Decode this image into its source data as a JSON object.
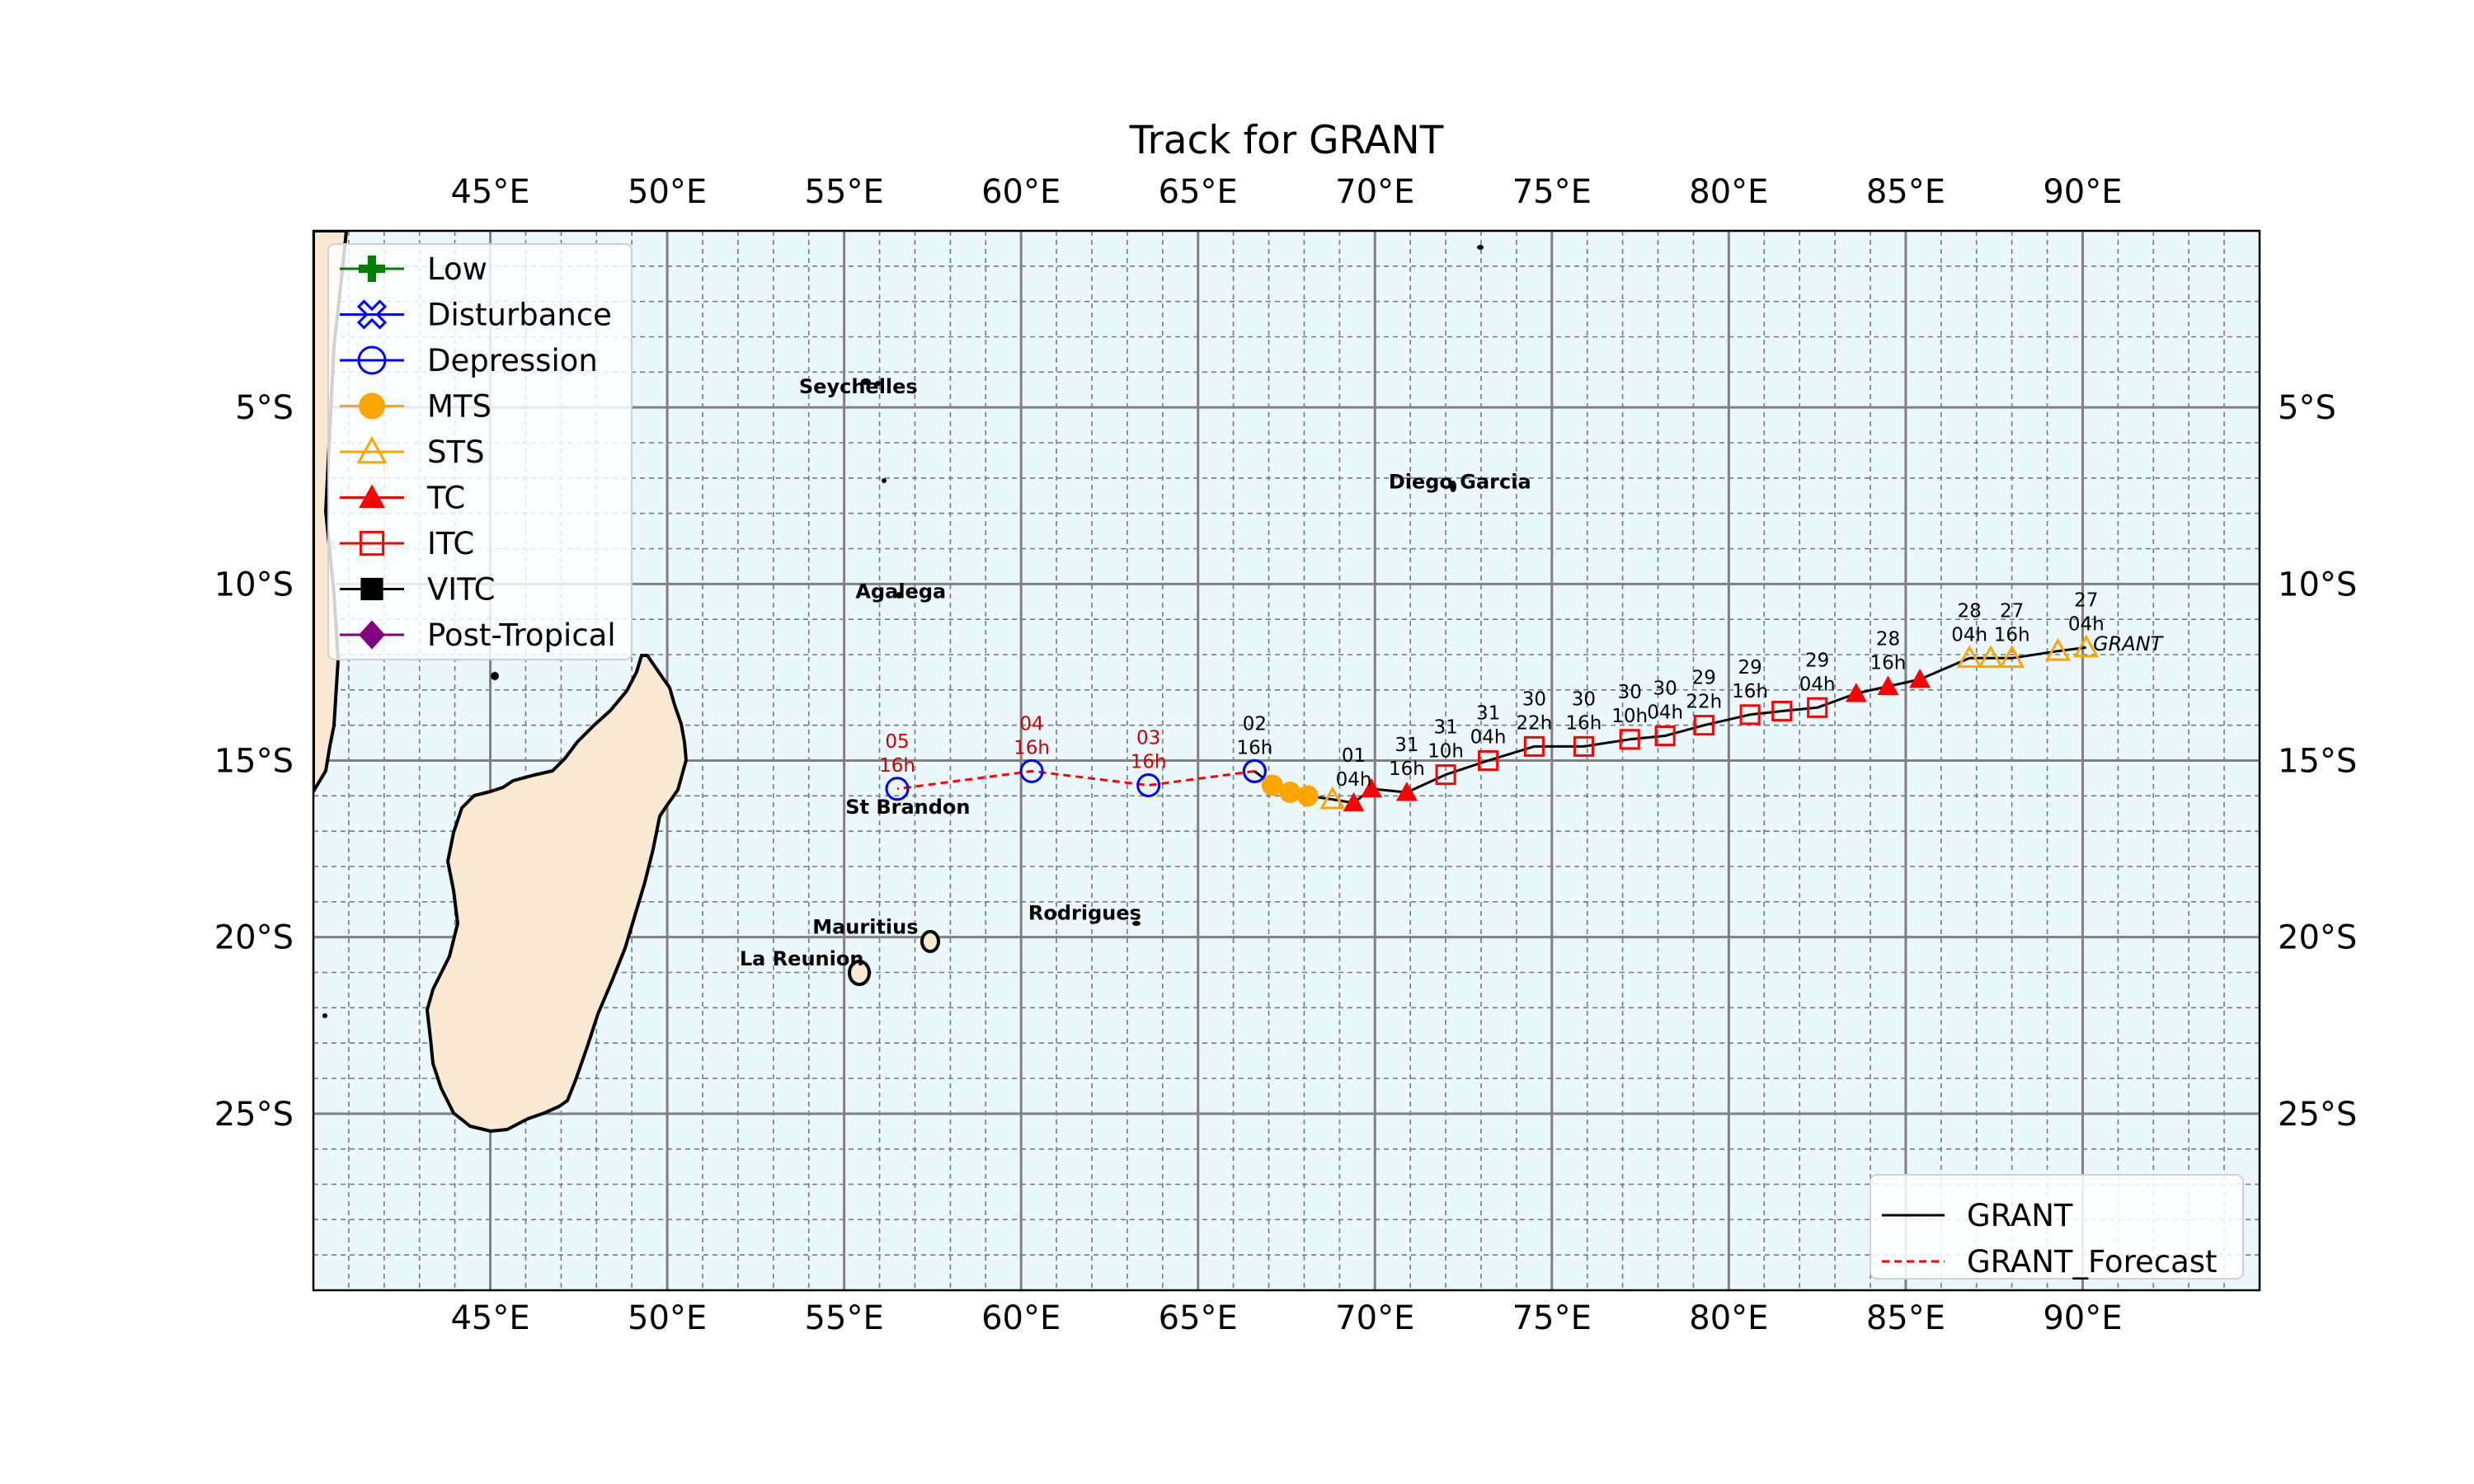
{
  "title": "Track for GRANT",
  "map": {
    "lon_range": [
      40,
      95
    ],
    "lat_range": [
      -30,
      0
    ],
    "major_lon_ticks": [
      45,
      50,
      55,
      60,
      65,
      70,
      75,
      80,
      85,
      90
    ],
    "major_lat_ticks": [
      -5,
      -10,
      -15,
      -20,
      -25
    ],
    "lon_tick_labels": [
      "45°E",
      "50°E",
      "55°E",
      "60°E",
      "65°E",
      "70°E",
      "75°E",
      "80°E",
      "85°E",
      "90°E"
    ],
    "lat_tick_labels": [
      "5°S",
      "10°S",
      "15°S",
      "20°S",
      "25°S"
    ],
    "ocean_color": "#eaf8fb",
    "land_color": "#f9e8d2",
    "grid_major_color": "#808080",
    "grid_minor_color": "#6a7d84"
  },
  "place_labels": [
    {
      "name": "Seychelles",
      "lon": 55.4,
      "lat": -4.6
    },
    {
      "name": "Diego Garcia",
      "lon": 72.4,
      "lat": -7.3
    },
    {
      "name": "Agalega",
      "lon": 56.6,
      "lat": -10.4
    },
    {
      "name": "St Brandon",
      "lon": 56.8,
      "lat": -16.5
    },
    {
      "name": "Mauritius",
      "lon": 55.6,
      "lat": -19.9
    },
    {
      "name": "Rodrigues",
      "lon": 61.8,
      "lat": -19.5
    },
    {
      "name": "La Reunion",
      "lon": 53.8,
      "lat": -20.8
    }
  ],
  "storm_label": "GRANT",
  "legend_categories": {
    "items": [
      {
        "label": "Low",
        "marker": "plus",
        "color": "#007f00"
      },
      {
        "label": "Disturbance",
        "marker": "x-hollow",
        "color": "#0000ff"
      },
      {
        "label": "Depression",
        "marker": "circle-hollow",
        "color": "#0000ff"
      },
      {
        "label": "MTS",
        "marker": "circle-filled",
        "color": "#ffa500"
      },
      {
        "label": "STS",
        "marker": "triangle-hollow",
        "color": "#ffa500"
      },
      {
        "label": "TC",
        "marker": "triangle-filled",
        "color": "#ff0000"
      },
      {
        "label": "ITC",
        "marker": "square-hollow",
        "color": "#ff0000"
      },
      {
        "label": "VITC",
        "marker": "square-filled",
        "color": "#000000"
      },
      {
        "label": "Post-Tropical",
        "marker": "diamond-filled",
        "color": "#800080"
      }
    ]
  },
  "legend_tracks": {
    "items": [
      {
        "label": "GRANT",
        "style": "solid",
        "color": "#000000"
      },
      {
        "label": "GRANT_Forecast",
        "style": "dashed",
        "color": "#ff0000"
      }
    ]
  },
  "chart_data": {
    "type": "map-track",
    "title": "Track for GRANT",
    "xlabel": "",
    "ylabel": "",
    "xlim": [
      40,
      95
    ],
    "ylim": [
      -30,
      0
    ],
    "series": [
      {
        "name": "GRANT",
        "line": "solid",
        "color": "#000000",
        "points": [
          {
            "lon": 90.1,
            "lat": -11.8,
            "cat": "STS"
          },
          {
            "lon": 89.3,
            "lat": -11.9,
            "cat": "STS"
          },
          {
            "lon": 88.0,
            "lat": -12.1,
            "cat": "STS"
          },
          {
            "lon": 87.4,
            "lat": -12.1,
            "cat": "STS"
          },
          {
            "lon": 86.8,
            "lat": -12.1,
            "cat": "STS"
          },
          {
            "lon": 85.4,
            "lat": -12.7,
            "cat": "TC"
          },
          {
            "lon": 84.5,
            "lat": -12.9,
            "cat": "TC"
          },
          {
            "lon": 83.6,
            "lat": -13.1,
            "cat": "TC"
          },
          {
            "lon": 82.5,
            "lat": -13.5,
            "cat": "ITC"
          },
          {
            "lon": 81.5,
            "lat": -13.6,
            "cat": "ITC"
          },
          {
            "lon": 80.6,
            "lat": -13.7,
            "cat": "ITC"
          },
          {
            "lon": 79.3,
            "lat": -14.0,
            "cat": "ITC"
          },
          {
            "lon": 78.2,
            "lat": -14.3,
            "cat": "ITC"
          },
          {
            "lon": 77.2,
            "lat": -14.4,
            "cat": "ITC"
          },
          {
            "lon": 75.9,
            "lat": -14.6,
            "cat": "ITC"
          },
          {
            "lon": 74.5,
            "lat": -14.6,
            "cat": "ITC"
          },
          {
            "lon": 73.2,
            "lat": -15.0,
            "cat": "ITC"
          },
          {
            "lon": 72.0,
            "lat": -15.4,
            "cat": "ITC"
          },
          {
            "lon": 70.9,
            "lat": -15.9,
            "cat": "TC"
          },
          {
            "lon": 69.9,
            "lat": -15.8,
            "cat": "TC"
          },
          {
            "lon": 69.4,
            "lat": -16.2,
            "cat": "TC"
          },
          {
            "lon": 68.8,
            "lat": -16.1,
            "cat": "STS"
          },
          {
            "lon": 68.1,
            "lat": -16.0,
            "cat": "MTS"
          },
          {
            "lon": 67.6,
            "lat": -15.9,
            "cat": "MTS"
          },
          {
            "lon": 67.1,
            "lat": -15.7,
            "cat": "MTS"
          },
          {
            "lon": 66.6,
            "lat": -15.3,
            "cat": "Depression"
          }
        ]
      },
      {
        "name": "GRANT_Forecast",
        "line": "dashed",
        "color": "#ff0000",
        "points": [
          {
            "lon": 66.6,
            "lat": -15.3,
            "cat": "Depression"
          },
          {
            "lon": 63.6,
            "lat": -15.7,
            "cat": "Depression"
          },
          {
            "lon": 60.3,
            "lat": -15.3,
            "cat": "Depression"
          },
          {
            "lon": 56.5,
            "lat": -15.8,
            "cat": "Depression"
          }
        ]
      }
    ],
    "annotations": [
      {
        "lines": [
          "27",
          "04h"
        ],
        "lon": 90.1,
        "lat": -11.8,
        "color": "#000000"
      },
      {
        "lines": [
          "27",
          "16h"
        ],
        "lon": 88.0,
        "lat": -12.1,
        "color": "#000000"
      },
      {
        "lines": [
          "28",
          "04h"
        ],
        "lon": 86.8,
        "lat": -12.1,
        "color": "#000000"
      },
      {
        "lines": [
          "28",
          "16h"
        ],
        "lon": 84.5,
        "lat": -12.9,
        "color": "#000000"
      },
      {
        "lines": [
          "29",
          "04h"
        ],
        "lon": 82.5,
        "lat": -13.5,
        "color": "#000000"
      },
      {
        "lines": [
          "29",
          "16h"
        ],
        "lon": 80.6,
        "lat": -13.7,
        "color": "#000000"
      },
      {
        "lines": [
          "29",
          "22h"
        ],
        "lon": 79.3,
        "lat": -14.0,
        "color": "#000000"
      },
      {
        "lines": [
          "30",
          "04h"
        ],
        "lon": 78.2,
        "lat": -14.3,
        "color": "#000000"
      },
      {
        "lines": [
          "30",
          "10h"
        ],
        "lon": 77.2,
        "lat": -14.4,
        "color": "#000000"
      },
      {
        "lines": [
          "30",
          "16h"
        ],
        "lon": 75.9,
        "lat": -14.6,
        "color": "#000000"
      },
      {
        "lines": [
          "30",
          "22h"
        ],
        "lon": 74.5,
        "lat": -14.6,
        "color": "#000000"
      },
      {
        "lines": [
          "31",
          "04h"
        ],
        "lon": 73.2,
        "lat": -15.0,
        "color": "#000000"
      },
      {
        "lines": [
          "31",
          "10h"
        ],
        "lon": 72.0,
        "lat": -15.4,
        "color": "#000000"
      },
      {
        "lines": [
          "31",
          "16h"
        ],
        "lon": 70.9,
        "lat": -15.9,
        "color": "#000000"
      },
      {
        "lines": [
          "01",
          "04h"
        ],
        "lon": 69.4,
        "lat": -16.2,
        "color": "#000000"
      },
      {
        "lines": [
          "02",
          "16h"
        ],
        "lon": 66.6,
        "lat": -15.3,
        "color": "#000000"
      },
      {
        "lines": [
          "03",
          "16h"
        ],
        "lon": 63.6,
        "lat": -15.7,
        "color": "#cc0000"
      },
      {
        "lines": [
          "04",
          "16h"
        ],
        "lon": 60.3,
        "lat": -15.3,
        "color": "#cc0000"
      },
      {
        "lines": [
          "05",
          "16h"
        ],
        "lon": 56.5,
        "lat": -15.8,
        "color": "#cc0000"
      }
    ]
  }
}
